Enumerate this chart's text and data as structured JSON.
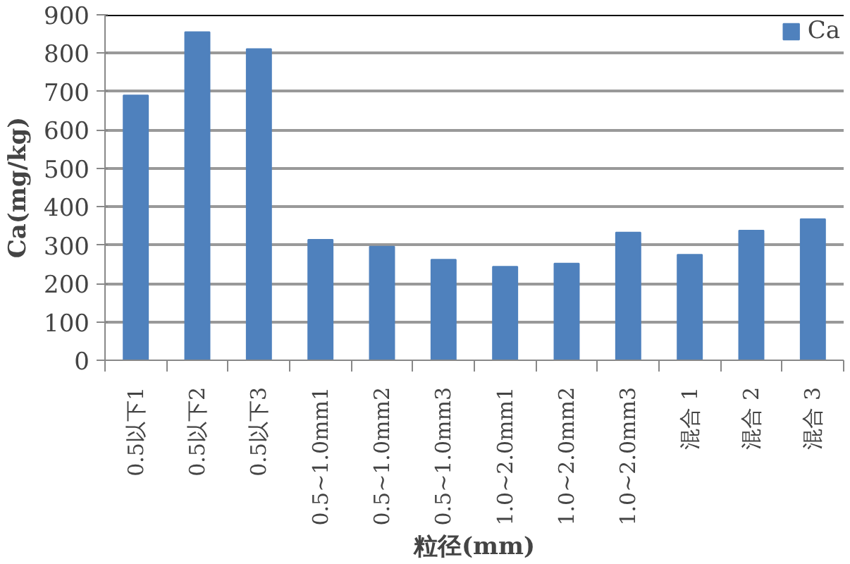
{
  "chart_data": {
    "type": "bar",
    "xlabel": "粒径(mm)",
    "ylabel": "Ca(mg/kg)",
    "categories": [
      "0.5以下1",
      "0.5以下2",
      "0.5以下3",
      "0.5~1.0mm1",
      "0.5~1.0mm2",
      "0.5~1.0mm3",
      "1.0~2.0mm1",
      "1.0~2.0mm2",
      "1.0~2.0mm3",
      "混合 1",
      "混合 2",
      "混合 3"
    ],
    "series": [
      {
        "name": "Ca",
        "color": "#4f81bd",
        "values": [
          690,
          855,
          811,
          314,
          296,
          262,
          244,
          252,
          333,
          275,
          338,
          368
        ]
      }
    ],
    "ylim": [
      0,
      900
    ],
    "yticks": [
      0,
      100,
      200,
      300,
      400,
      500,
      600,
      700,
      800,
      900
    ],
    "grid": "y",
    "legend": "top right"
  }
}
